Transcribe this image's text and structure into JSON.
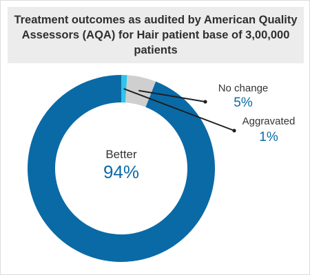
{
  "chart_data": {
    "type": "pie",
    "title": "Treatment outcomes as audited by American Quality Assessors (AQA) for Hair patient base of 3,00,000 patients",
    "slices": [
      {
        "label": "Better",
        "value": 94,
        "value_label": "94%",
        "color": "#0a6aa6"
      },
      {
        "label": "Aggravated",
        "value": 1,
        "value_label": "1%",
        "color": "#2ec4ec"
      },
      {
        "label": "No change",
        "value": 5,
        "value_label": "5%",
        "color": "#cfcfcf"
      }
    ],
    "colors": {
      "accent": "#0a6aa6",
      "label_text": "#333333",
      "value_text": "#0a6aa6"
    }
  }
}
